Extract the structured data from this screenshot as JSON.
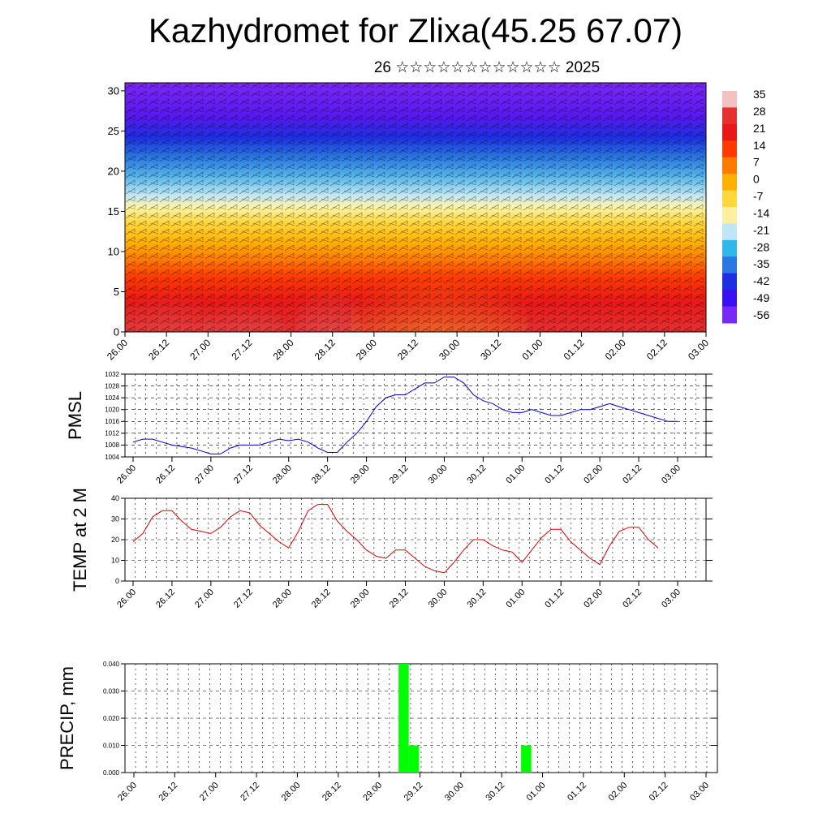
{
  "title": "Kazhydromet for Zlixa(45.25 67.07)",
  "subtitle": "26 ☆☆☆☆☆☆☆☆☆☆☆☆ 2025",
  "x_tick_labels": [
    "26.00",
    "26.12",
    "27.00",
    "27.12",
    "28.00",
    "28.12",
    "29.00",
    "29.12",
    "30.00",
    "30.12",
    "01.00",
    "01.12",
    "02.00",
    "02.12",
    "03.00"
  ],
  "chart_data": [
    {
      "type": "heatmap",
      "panel": "cross-section",
      "ylim": [
        0,
        31
      ],
      "y_ticks": [
        0,
        5,
        10,
        15,
        20,
        25,
        30
      ],
      "colorbar": {
        "labels": [
          "35",
          "28",
          "21",
          "14",
          "7",
          "0",
          "-7",
          "-14",
          "-21",
          "-28",
          "-35",
          "-42",
          "-49",
          "-56"
        ],
        "colors": [
          "#f2c2c2",
          "#e53030",
          "#e81818",
          "#ff3a00",
          "#ff7a00",
          "#ffb000",
          "#ffd840",
          "#fff0a0",
          "#bfe6f5",
          "#30b8e8",
          "#2a78e0",
          "#1e2ee0",
          "#3b10f0",
          "#7a28f5"
        ]
      }
    },
    {
      "type": "line",
      "panel": "PMSL",
      "ylabel": "PMSL",
      "ylim": [
        1004,
        1032
      ],
      "y_ticks": [
        1004,
        1008,
        1012,
        1016,
        1020,
        1024,
        1028,
        1032
      ],
      "color": "#0000cc",
      "x": [
        0,
        1,
        2,
        3,
        4,
        5,
        6,
        7,
        8,
        9,
        10,
        11,
        12,
        13,
        14,
        15,
        16,
        17,
        18,
        19,
        20,
        21,
        22,
        23,
        24,
        25,
        26,
        27,
        28,
        29,
        30,
        31,
        32,
        33,
        34,
        35,
        36,
        37,
        38,
        39,
        40,
        41,
        42,
        43,
        44,
        45,
        46,
        47,
        48,
        49,
        50,
        51,
        52,
        53,
        54,
        55,
        56
      ],
      "values": [
        1009,
        1010,
        1010,
        1009,
        1008,
        1007.5,
        1007,
        1006,
        1005,
        1005,
        1007,
        1008,
        1008,
        1008,
        1009,
        1010,
        1009.5,
        1010,
        1009,
        1007,
        1005.5,
        1005.5,
        1009,
        1012,
        1016,
        1021,
        1024,
        1025,
        1025,
        1027,
        1029,
        1029,
        1031,
        1031,
        1029,
        1025,
        1023,
        1022,
        1020,
        1019,
        1019,
        1020,
        1019,
        1018,
        1018,
        1019,
        1020,
        1020,
        1021,
        1022,
        1021,
        1020,
        1019,
        1018,
        1017,
        1016,
        1016
      ]
    },
    {
      "type": "line",
      "panel": "TEMP",
      "ylabel": "TEMP at 2 M",
      "ylim": [
        0,
        40
      ],
      "y_ticks": [
        0,
        10,
        20,
        30,
        40
      ],
      "color": "#dd0000",
      "x": [
        0,
        1,
        2,
        3,
        4,
        5,
        6,
        7,
        8,
        9,
        10,
        11,
        12,
        13,
        14,
        15,
        16,
        17,
        18,
        19,
        20,
        21,
        22,
        23,
        24,
        25,
        26,
        27,
        28,
        29,
        30,
        31,
        32,
        33,
        34,
        35,
        36,
        37,
        38,
        39,
        40,
        41,
        42,
        43,
        44,
        45,
        46,
        47,
        48,
        49,
        50,
        51,
        52,
        53,
        54
      ],
      "values": [
        19,
        23,
        31,
        34,
        34,
        29,
        25,
        24,
        23,
        26,
        31,
        34,
        33,
        27,
        23,
        19,
        16,
        24,
        34,
        37,
        37,
        29,
        24,
        20,
        15,
        12,
        11,
        15,
        15,
        11,
        7,
        5,
        4,
        9,
        15,
        20,
        20,
        17,
        15,
        14,
        9,
        15,
        21,
        25,
        25,
        19,
        15,
        11,
        8,
        17,
        24,
        26,
        26,
        20,
        16
      ]
    },
    {
      "type": "bar",
      "panel": "PRECIP",
      "ylabel": "PRECIP, mm",
      "ylim": [
        0,
        0.04
      ],
      "y_ticks": [
        "0.000",
        "0.010",
        "0.020",
        "0.030",
        "0.040"
      ],
      "color": "#00ff00",
      "x": [
        26.4,
        27.4,
        38.4
      ],
      "values": [
        0.04,
        0.01,
        0.01
      ]
    }
  ]
}
